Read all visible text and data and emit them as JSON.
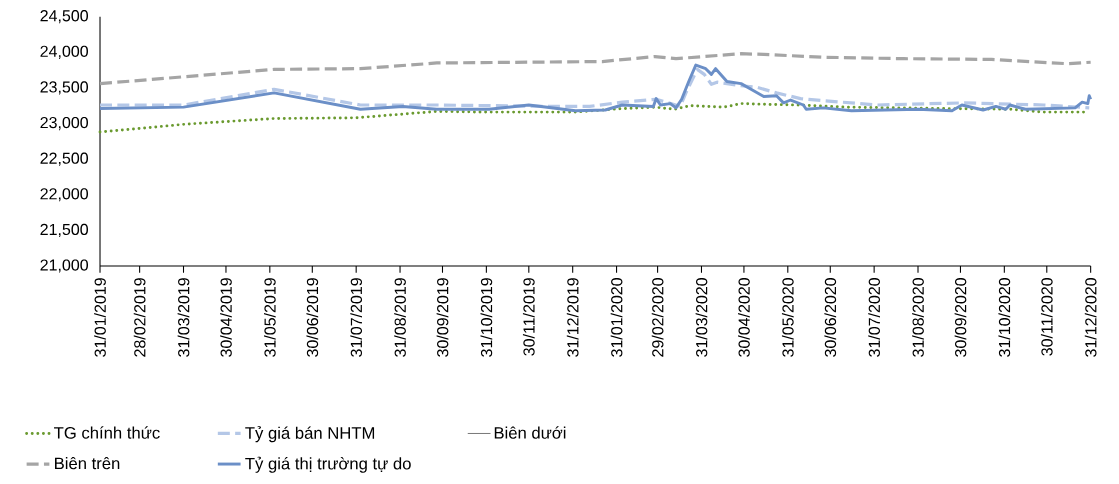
{
  "chart_data": {
    "type": "line",
    "xlim": [
      "2019-01-31",
      "2020-12-31"
    ],
    "xticks": [
      {
        "value": "2019-01-31",
        "label": "31/01/2019"
      },
      {
        "value": "2019-02-28",
        "label": "28/02/2019"
      },
      {
        "value": "2019-03-31",
        "label": "31/03/2019"
      },
      {
        "value": "2019-04-30",
        "label": "30/04/2019"
      },
      {
        "value": "2019-05-31",
        "label": "31/05/2019"
      },
      {
        "value": "2019-06-30",
        "label": "30/06/2019"
      },
      {
        "value": "2019-07-31",
        "label": "31/07/2019"
      },
      {
        "value": "2019-08-31",
        "label": "31/08/2019"
      },
      {
        "value": "2019-09-30",
        "label": "30/09/2019"
      },
      {
        "value": "2019-10-31",
        "label": "31/10/2019"
      },
      {
        "value": "2019-11-30",
        "label": "30/11/2019"
      },
      {
        "value": "2019-12-31",
        "label": "31/12/2019"
      },
      {
        "value": "2020-01-31",
        "label": "31/01/2020"
      },
      {
        "value": "2020-02-29",
        "label": "29/02/2020"
      },
      {
        "value": "2020-03-31",
        "label": "31/03/2020"
      },
      {
        "value": "2020-04-30",
        "label": "30/04/2020"
      },
      {
        "value": "2020-05-31",
        "label": "31/05/2020"
      },
      {
        "value": "2020-06-30",
        "label": "30/06/2020"
      },
      {
        "value": "2020-07-31",
        "label": "31/07/2020"
      },
      {
        "value": "2020-08-31",
        "label": "31/08/2020"
      },
      {
        "value": "2020-09-30",
        "label": "30/09/2020"
      },
      {
        "value": "2020-10-31",
        "label": "31/10/2020"
      },
      {
        "value": "2020-11-30",
        "label": "30/11/2020"
      },
      {
        "value": "2020-12-31",
        "label": "31/12/2020"
      }
    ],
    "ylim": [
      21000,
      24500
    ],
    "yticks": [
      {
        "value": 21000,
        "label": "21,000"
      },
      {
        "value": 21500,
        "label": "21,500"
      },
      {
        "value": 22000,
        "label": "22,000"
      },
      {
        "value": 22500,
        "label": "22,500"
      },
      {
        "value": 23000,
        "label": "23,000"
      },
      {
        "value": 23500,
        "label": "23,500"
      },
      {
        "value": 24000,
        "label": "24,000"
      },
      {
        "value": 24500,
        "label": "24,500"
      }
    ],
    "legend": "bottom",
    "grid": false,
    "marker": "none",
    "series": [
      {
        "name": "TG chính thức",
        "color": "#6a9a2f",
        "line_style": "dotted",
        "x": [
          "2019-01-31",
          "2019-04-01",
          "2019-06-03",
          "2019-07-31",
          "2019-09-26",
          "2019-11-02",
          "2020-01-01",
          "2020-02-04",
          "2020-02-27",
          "2020-03-12",
          "2020-03-23",
          "2020-04-16",
          "2020-04-28",
          "2020-05-14",
          "2020-06-07",
          "2020-07-10",
          "2020-09-19",
          "2020-11-05",
          "2020-11-28",
          "2020-12-29"
        ],
        "values": [
          22880,
          22990,
          23070,
          23080,
          23170,
          23160,
          23160,
          23210,
          23230,
          23200,
          23250,
          23230,
          23280,
          23270,
          23260,
          23230,
          23210,
          23200,
          23160,
          23160
        ]
      },
      {
        "name": "Tỷ giá bán NHTM",
        "color": "#b4c7e7",
        "line_style": "dashed",
        "x": [
          "2019-01-31",
          "2019-03-31",
          "2019-06-03",
          "2019-08-03",
          "2019-09-26",
          "2019-12-19",
          "2020-01-12",
          "2020-02-04",
          "2020-02-28",
          "2020-03-16",
          "2020-03-20",
          "2020-03-28",
          "2020-04-02",
          "2020-04-07",
          "2020-04-11",
          "2020-04-28",
          "2020-05-09",
          "2020-05-23",
          "2020-06-09",
          "2020-06-26",
          "2020-08-02",
          "2020-10-03",
          "2020-11-28",
          "2020-12-30"
        ],
        "values": [
          23260,
          23260,
          23480,
          23260,
          23260,
          23240,
          23240,
          23300,
          23340,
          23240,
          23430,
          23760,
          23690,
          23550,
          23580,
          23530,
          23510,
          23430,
          23350,
          23320,
          23260,
          23290,
          23260,
          23220
        ]
      },
      {
        "name": "Biên dưới",
        "line_style": "solid"
      },
      {
        "name": "Biên trên",
        "color": "#a5a5a5",
        "line_style": "dashed",
        "x": [
          "2019-01-31",
          "2019-06-03",
          "2019-08-03",
          "2019-09-26",
          "2020-01-21",
          "2020-02-27",
          "2020-03-13",
          "2020-04-28",
          "2020-05-14",
          "2020-06-26",
          "2020-08-21",
          "2020-10-22",
          "2020-12-14",
          "2020-12-31"
        ],
        "values": [
          23560,
          23760,
          23770,
          23850,
          23870,
          23940,
          23910,
          23980,
          23970,
          23930,
          23910,
          23900,
          23840,
          23860
        ]
      },
      {
        "name": "Tỷ giá thị trường tự do",
        "color": "#6b8fc7",
        "line_style": "solid",
        "x": [
          "2019-01-31",
          "2019-03-31",
          "2019-06-03",
          "2019-08-03",
          "2019-09-02",
          "2019-09-26",
          "2019-11-02",
          "2019-11-30",
          "2020-01-02",
          "2020-01-23",
          "2020-02-04",
          "2020-02-26",
          "2020-02-28",
          "2020-03-02",
          "2020-03-09",
          "2020-03-13",
          "2020-03-17",
          "2020-03-22",
          "2020-03-27",
          "2020-04-03",
          "2020-04-07",
          "2020-04-10",
          "2020-04-18",
          "2020-04-28",
          "2020-05-05",
          "2020-05-14",
          "2020-05-23",
          "2020-05-28",
          "2020-06-02",
          "2020-06-11",
          "2020-06-13",
          "2020-06-25",
          "2020-07-15",
          "2020-08-31",
          "2020-09-24",
          "2020-10-01",
          "2020-10-16",
          "2020-10-25",
          "2020-11-01",
          "2020-11-04",
          "2020-11-15",
          "2020-12-20",
          "2020-12-25",
          "2020-12-29",
          "2020-12-30",
          "2020-12-31"
        ],
        "values": [
          23210,
          23230,
          23430,
          23200,
          23240,
          23200,
          23200,
          23260,
          23180,
          23190,
          23260,
          23240,
          23350,
          23260,
          23280,
          23220,
          23340,
          23590,
          23820,
          23770,
          23690,
          23770,
          23590,
          23560,
          23480,
          23380,
          23390,
          23290,
          23330,
          23260,
          23200,
          23220,
          23180,
          23200,
          23180,
          23260,
          23190,
          23240,
          23200,
          23260,
          23200,
          23220,
          23300,
          23280,
          23390,
          23340
        ]
      }
    ]
  }
}
